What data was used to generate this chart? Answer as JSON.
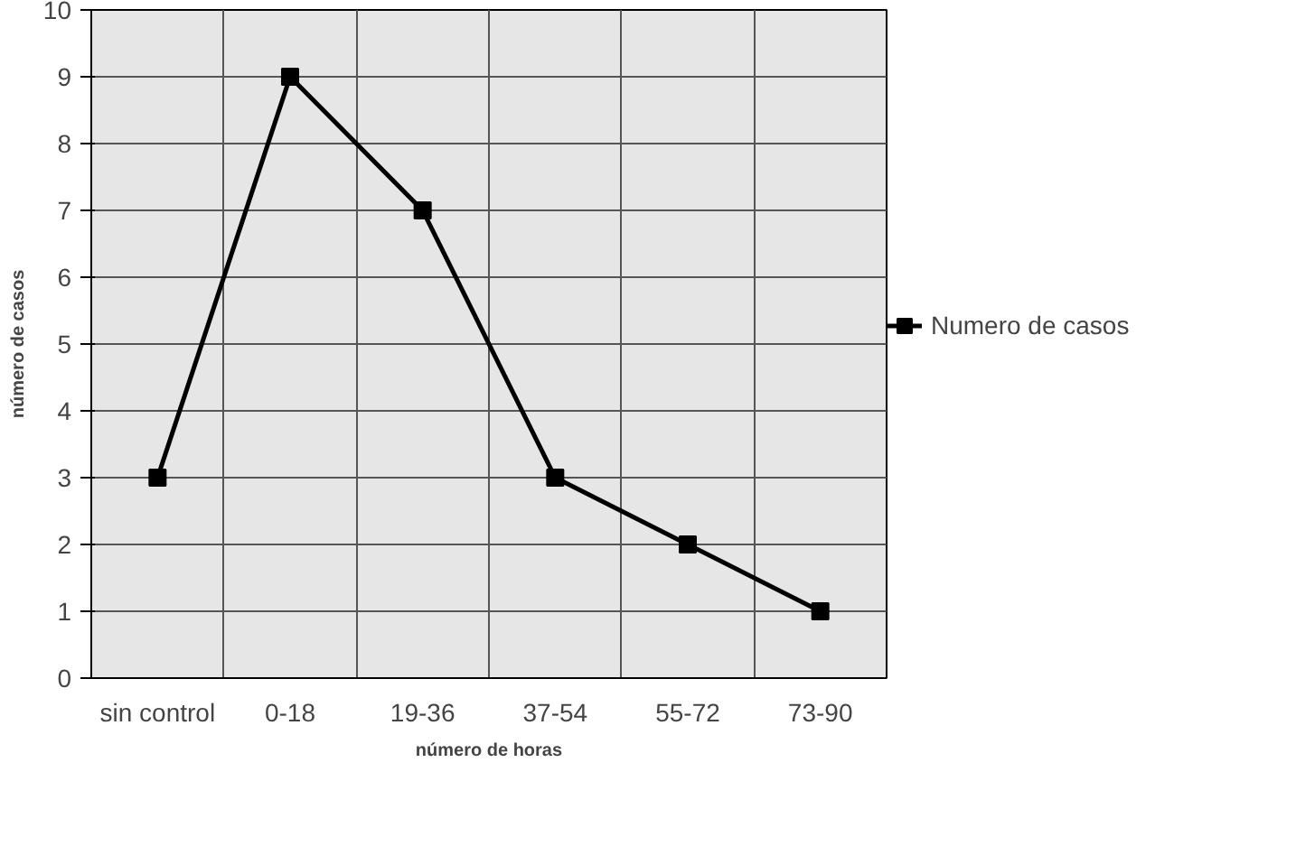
{
  "chart_data": {
    "type": "line",
    "xlabel": "número de horas",
    "ylabel": "número de casos",
    "categories": [
      "sin control",
      "0-18",
      "19-36",
      "37-54",
      "55-72",
      "73-90"
    ],
    "series": [
      {
        "name": "Numero de casos",
        "color": "#000000",
        "values": [
          3,
          9,
          7,
          3,
          2,
          1
        ]
      }
    ],
    "ylim": [
      0,
      10
    ],
    "yticks": [
      0,
      1,
      2,
      3,
      4,
      5,
      6,
      7,
      8,
      9,
      10
    ],
    "grid": true,
    "legend": "right",
    "marker": "square",
    "line_style": "solid"
  }
}
